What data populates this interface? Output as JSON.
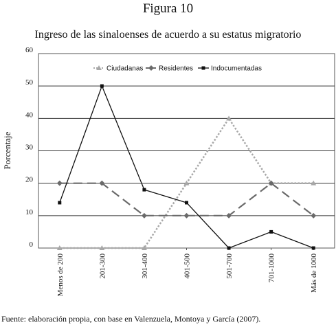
{
  "figure_label": "Figura 10",
  "source_note": "Fuente: elaboración propia, con base en Valenzuela, Montoya y García (2007).",
  "chart_data": {
    "type": "line",
    "title": "Ingreso de las sinaloenses de acuerdo a su estatus migratorio",
    "xlabel": "",
    "ylabel": "Porcentaje",
    "ylim": [
      0,
      60
    ],
    "yticks": [
      "0",
      "10",
      "20",
      "30",
      "40",
      "50",
      "60"
    ],
    "grid": true,
    "legend_position": "top",
    "categories": [
      "Menos de 200",
      "201-300",
      "301-400",
      "401-500",
      "501-700",
      "701-1000",
      "Más de 1000"
    ],
    "series": [
      {
        "name": "Ciudadanas",
        "values": [
          0,
          0,
          0,
          20,
          40,
          20,
          20
        ],
        "color": "#a8a8a8",
        "marker": "triangle",
        "dash": "dotted"
      },
      {
        "name": "Residentes",
        "values": [
          20,
          20,
          10,
          10,
          10,
          20,
          10
        ],
        "color": "#6a6a6a",
        "marker": "diamond",
        "dash": "long-dash"
      },
      {
        "name": "Indocumentadas",
        "values": [
          14,
          50,
          18,
          14,
          0,
          5,
          0
        ],
        "color": "#111111",
        "marker": "square",
        "dash": "solid"
      }
    ]
  }
}
